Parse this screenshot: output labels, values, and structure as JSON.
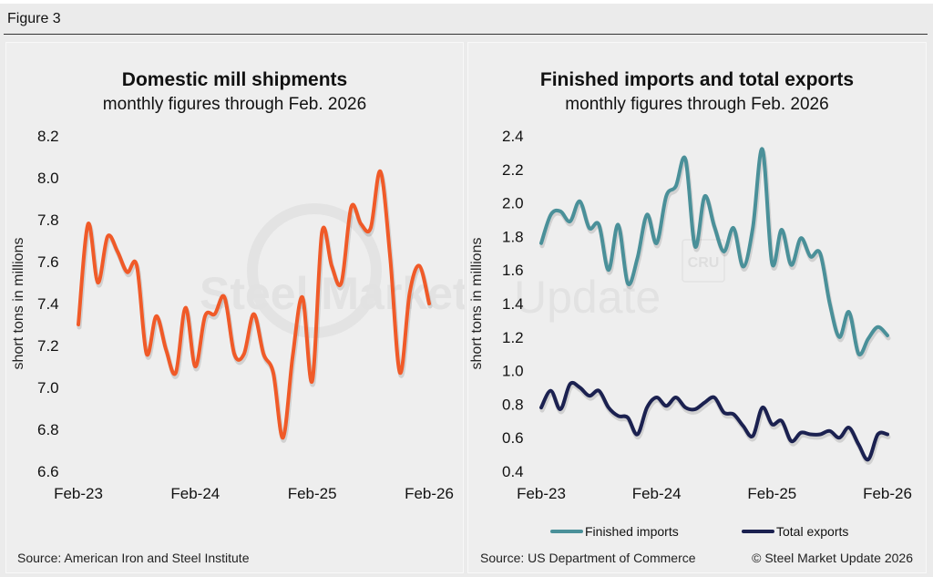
{
  "figure_title": "Figure 3",
  "watermark": {
    "brand_bold": "Steel Market",
    "brand_light": "Update",
    "badge": "CRU"
  },
  "chart_data": [
    {
      "type": "line",
      "title": "Domestic mill shipments",
      "subtitle": "monthly figures through Feb. 2026",
      "xlabel": "",
      "ylabel": "short tons in millions",
      "ylim": [
        6.6,
        8.2
      ],
      "yticks": [
        "8.2",
        "8.0",
        "7.8",
        "7.6",
        "7.4",
        "7.2",
        "7.0",
        "6.8",
        "6.6"
      ],
      "ytick_values": [
        8.2,
        8.0,
        7.8,
        7.6,
        7.4,
        7.2,
        7.0,
        6.8,
        6.6
      ],
      "xticks": [
        "Feb-23",
        "Feb-24",
        "Feb-25",
        "Feb-26"
      ],
      "xtick_index": [
        0,
        12,
        24,
        36
      ],
      "grid": false,
      "legend": "none",
      "source": "Source: American Iron and Steel Institute",
      "series": [
        {
          "name": "Domestic mill shipments",
          "color": "#f05a28",
          "values": [
            7.3,
            7.78,
            7.5,
            7.72,
            7.65,
            7.55,
            7.58,
            7.16,
            7.34,
            7.18,
            7.07,
            7.38,
            7.1,
            7.34,
            7.35,
            7.43,
            7.16,
            7.16,
            7.35,
            7.16,
            7.07,
            6.76,
            7.15,
            7.43,
            7.03,
            7.74,
            7.58,
            7.5,
            7.86,
            7.78,
            7.76,
            8.03,
            7.62,
            7.07,
            7.45,
            7.58,
            7.4
          ]
        }
      ]
    },
    {
      "type": "line",
      "title": "Finished imports and total exports",
      "subtitle": "monthly figures through Feb. 2026",
      "xlabel": "",
      "ylabel": "short tons in millions",
      "ylim": [
        0.4,
        2.4
      ],
      "yticks": [
        "2.4",
        "2.2",
        "2.0",
        "1.8",
        "1.6",
        "1.4",
        "1.2",
        "1.0",
        "0.8",
        "0.6",
        "0.4"
      ],
      "ytick_values": [
        2.4,
        2.2,
        2.0,
        1.8,
        1.6,
        1.4,
        1.2,
        1.0,
        0.8,
        0.6,
        0.4
      ],
      "xticks": [
        "Feb-23",
        "Feb-24",
        "Feb-25",
        "Feb-26"
      ],
      "xtick_index": [
        0,
        12,
        24,
        36
      ],
      "grid": false,
      "legend": "bottom",
      "source": "Source: US Department of Commerce",
      "copyright": "© Steel Market Update 2026",
      "series": [
        {
          "name": "Finished imports",
          "color": "#4a9099",
          "values": [
            1.76,
            1.93,
            1.95,
            1.89,
            2.01,
            1.85,
            1.87,
            1.6,
            1.87,
            1.52,
            1.67,
            1.93,
            1.76,
            2.04,
            2.1,
            2.26,
            1.74,
            2.04,
            1.86,
            1.71,
            1.85,
            1.62,
            1.85,
            2.32,
            1.64,
            1.84,
            1.63,
            1.79,
            1.68,
            1.7,
            1.4,
            1.2,
            1.35,
            1.1,
            1.19,
            1.26,
            1.21
          ]
        },
        {
          "name": "Total exports",
          "color": "#1b2150",
          "values": [
            0.78,
            0.88,
            0.77,
            0.92,
            0.9,
            0.85,
            0.88,
            0.78,
            0.73,
            0.72,
            0.62,
            0.78,
            0.84,
            0.79,
            0.84,
            0.78,
            0.77,
            0.81,
            0.84,
            0.75,
            0.74,
            0.67,
            0.61,
            0.78,
            0.68,
            0.7,
            0.58,
            0.63,
            0.62,
            0.62,
            0.64,
            0.6,
            0.66,
            0.56,
            0.47,
            0.62,
            0.62
          ]
        }
      ]
    }
  ]
}
